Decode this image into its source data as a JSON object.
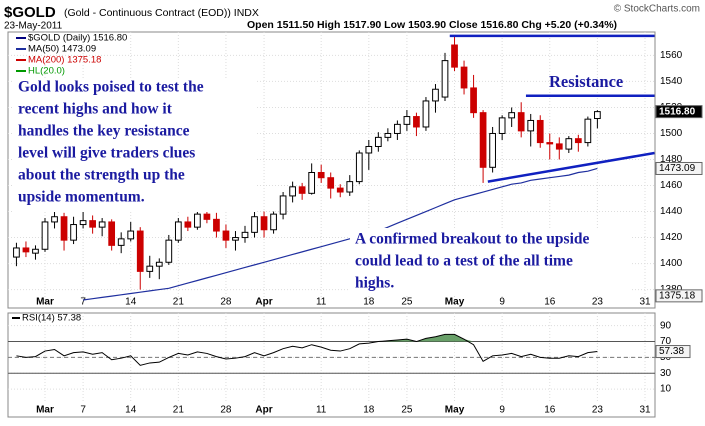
{
  "header": {
    "symbol": "$GOLD",
    "description": "(Gold - Continuous Contract (EOD)) INDX",
    "date": "23-May-2011",
    "copyright": "© StockCharts.com",
    "quote": "Open 1511.50  High 1517.90  Low 1503.90  Close 1516.80  Chg +5.20 (+0.34%)"
  },
  "chart_data": [
    {
      "type": "candlestick",
      "categories": [
        null,
        null,
        null,
        "Mar",
        null,
        null,
        null,
        "7",
        null,
        null,
        null,
        null,
        "14",
        null,
        null,
        null,
        null,
        "21",
        null,
        null,
        null,
        null,
        "28",
        null,
        null,
        null,
        "Apr",
        null,
        null,
        null,
        null,
        null,
        "11",
        null,
        null,
        null,
        null,
        "18",
        null,
        null,
        null,
        "25",
        null,
        null,
        null,
        null,
        "May",
        null,
        null,
        null,
        null,
        "9",
        null,
        null,
        null,
        null,
        "16",
        null,
        null,
        null,
        null,
        "23",
        null,
        null,
        null,
        null,
        "31"
      ],
      "open": [
        1405,
        1412,
        1408,
        1411,
        1432,
        1436,
        1418,
        1430,
        1433,
        1428,
        1432,
        1414,
        1419,
        1425,
        1394,
        1398,
        1401,
        1418,
        1432,
        1428,
        1438,
        1434,
        1425,
        1418,
        1420,
        1424,
        1436,
        1426,
        1438,
        1452,
        1459,
        1454,
        1470,
        1466,
        1458,
        1455,
        1463,
        1485,
        1490,
        1497,
        1500,
        1507,
        1513,
        1505,
        1525,
        1528,
        1568,
        1551,
        1535,
        1516,
        1474,
        1500,
        1512,
        1516,
        1502,
        1510,
        1493,
        1492,
        1488,
        1496,
        1493,
        1511.5,
        null,
        null,
        null,
        null,
        null
      ],
      "high": [
        1416,
        1417,
        1414,
        1435,
        1440,
        1439,
        1436,
        1445,
        1437,
        1435,
        1434,
        1424,
        1432,
        1428,
        1406,
        1404,
        1422,
        1435,
        1436,
        1442,
        1448,
        1439,
        1430,
        1425,
        1429,
        1440,
        1440,
        1440,
        1455,
        1463,
        1462,
        1477,
        1476,
        1470,
        1461,
        1468,
        1487,
        1495,
        1501,
        1504,
        1510,
        1518,
        1516,
        1528,
        1538,
        1562,
        1575,
        1556,
        1545,
        1518,
        1505,
        1514,
        1520,
        1524,
        1515,
        1514,
        1500,
        1497,
        1498,
        1499,
        1513,
        1517.9,
        null,
        null,
        null,
        null,
        null
      ],
      "low": [
        1398,
        1405,
        1403,
        1409,
        1427,
        1410,
        1415,
        1427,
        1423,
        1421,
        1410,
        1408,
        1417,
        1380,
        1389,
        1388,
        1399,
        1416,
        1425,
        1426,
        1431,
        1420,
        1412,
        1410,
        1416,
        1420,
        1420,
        1423,
        1434,
        1447,
        1449,
        1453,
        1462,
        1450,
        1451,
        1452,
        1461,
        1472,
        1486,
        1494,
        1495,
        1502,
        1498,
        1502,
        1516,
        1525,
        1548,
        1530,
        1512,
        1462,
        1470,
        1495,
        1505,
        1497,
        1490,
        1489,
        1480,
        1480,
        1485,
        1486,
        1490,
        1503.9,
        null,
        null,
        null,
        null,
        null
      ],
      "close": [
        1412,
        1409,
        1411,
        1432,
        1436,
        1418,
        1430,
        1433,
        1428,
        1432,
        1414,
        1419,
        1425,
        1394,
        1398,
        1401,
        1418,
        1432,
        1428,
        1438,
        1434,
        1425,
        1418,
        1420,
        1424,
        1436,
        1426,
        1438,
        1452,
        1459,
        1454,
        1470,
        1466,
        1458,
        1455,
        1463,
        1485,
        1490,
        1497,
        1500,
        1507,
        1513,
        1505,
        1525,
        1534,
        1556,
        1551,
        1535,
        1516,
        1474,
        1500,
        1512,
        1516,
        1502,
        1510,
        1493,
        1492,
        1488,
        1496,
        1493,
        1511,
        1516.8,
        null,
        null,
        null,
        null,
        null
      ],
      "up_color": "#000000",
      "down_color": "#cc0000",
      "series": [
        {
          "name": "MA(50)",
          "color": "#1f2f9f",
          "values": [
            null,
            null,
            null,
            null,
            null,
            null,
            null,
            1372,
            1373,
            1374,
            1375,
            1376,
            1377,
            1378,
            1379,
            1380,
            1381,
            1383,
            1385,
            1387,
            1389,
            1391,
            1393,
            1395,
            1397,
            1399,
            1401,
            1403,
            1405,
            1407,
            1409,
            1411,
            1413,
            1415,
            1417,
            1419,
            1421,
            1423,
            1425,
            1428,
            1431,
            1434,
            1437,
            1440,
            1443,
            1446,
            1449,
            1451,
            1453,
            1455,
            1457,
            1459,
            1461,
            1462,
            1464,
            1465,
            1466,
            1467,
            1468,
            1470,
            1471,
            1473.09,
            null,
            null,
            null,
            null,
            null
          ]
        }
      ],
      "legend": [
        {
          "label": "$GOLD (Daily) 1516.80",
          "color": "#000080"
        },
        {
          "label": "MA(50) 1473.09",
          "color": "#1f2f9f"
        },
        {
          "label": "MA(200) 1375.18",
          "color": "#cc0000"
        },
        {
          "label": "HL(20.0)",
          "color": "#009900"
        }
      ],
      "ylim": [
        1372,
        1578
      ],
      "yticks": [
        1380,
        1400,
        1420,
        1440,
        1460,
        1480,
        1500,
        1520,
        1540,
        1560
      ],
      "last_values": [
        {
          "value": 1516.8,
          "label": "1516.80"
        },
        1473.09,
        1375.18
      ],
      "grid": true,
      "trendlines": [
        {
          "x": [
            45.5,
            67
          ],
          "values": [
            1575,
            1575
          ]
        },
        {
          "x": [
            53.5,
            67
          ],
          "values": [
            1529,
            1529
          ]
        },
        {
          "x": [
            49.5,
            67
          ],
          "values": [
            1463,
            1485
          ]
        }
      ],
      "trendline_color": "#1020c0",
      "annotations": [
        {
          "lines": [
            "Gold looks poised to test the",
            "recent highs and how it",
            "handles the key resistance",
            "level will give traders clues",
            "about the strength up the",
            "upside momentum."
          ]
        },
        {
          "lines": [
            "Resistance"
          ]
        },
        {
          "lines": [
            "A confirmed breakout to the upside",
            "could lead to a test of the all time",
            "highs."
          ]
        }
      ]
    },
    {
      "type": "line",
      "title": "RSI(14) 57.38",
      "categories": [
        null,
        null,
        null,
        "Mar",
        null,
        null,
        null,
        "7",
        null,
        null,
        null,
        null,
        "14",
        null,
        null,
        null,
        null,
        "21",
        null,
        null,
        null,
        null,
        "28",
        null,
        null,
        null,
        "Apr",
        null,
        null,
        null,
        null,
        null,
        "11",
        null,
        null,
        null,
        null,
        "18",
        null,
        null,
        null,
        "25",
        null,
        null,
        null,
        null,
        "May",
        null,
        null,
        null,
        null,
        "9",
        null,
        null,
        null,
        null,
        "16",
        null,
        null,
        null,
        null,
        "23",
        null,
        null,
        null,
        null,
        "31"
      ],
      "values": [
        52,
        50,
        51,
        58,
        60,
        52,
        56,
        57,
        54,
        56,
        47,
        49,
        52,
        40,
        43,
        44,
        50,
        55,
        53,
        57,
        55,
        51,
        48,
        49,
        51,
        56,
        52,
        56,
        61,
        64,
        62,
        66,
        63,
        59,
        58,
        61,
        67,
        68,
        70,
        71,
        72,
        73,
        70,
        74,
        76,
        79,
        79,
        73,
        66,
        45,
        52,
        53,
        55,
        51,
        54,
        50,
        49,
        49,
        52,
        51,
        56,
        57.38,
        null,
        null,
        null,
        null,
        null
      ],
      "color": "#000000",
      "fill_color": "#4f8f4f",
      "ylim": [
        -5,
        106
      ],
      "yticks": [
        10,
        30,
        50,
        70,
        90
      ],
      "overbought": 70,
      "midline": 50,
      "oversold": 30,
      "last_value": {
        "value": 57.38,
        "label": "57.38"
      },
      "grid": true
    }
  ]
}
